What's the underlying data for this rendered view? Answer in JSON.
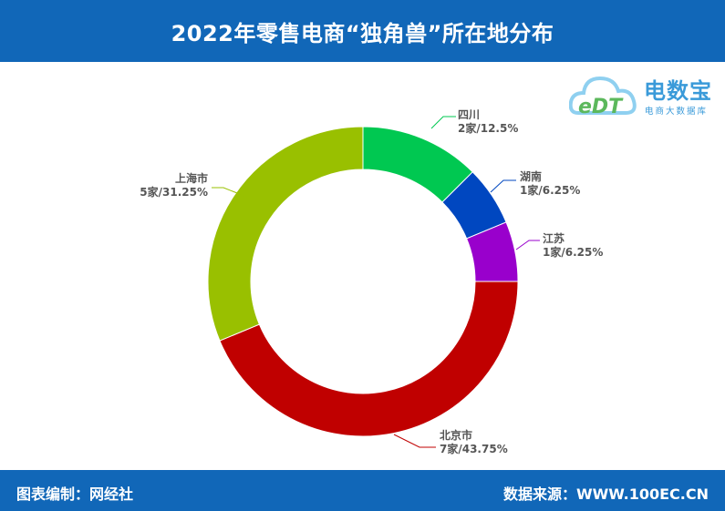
{
  "header": {
    "title": "2022年零售电商“独角兽”所在地分布"
  },
  "logo": {
    "name": "电数宝",
    "sub": "电商大数据库",
    "mark": "eDT",
    "icon": "cloud-icon"
  },
  "footer": {
    "left": "图表编制：网经社",
    "right": "数据来源：WWW.100EC.CN"
  },
  "colors": {
    "header_bg": "#1167b8",
    "sichuan": "#00c851",
    "hunan": "#0047c0",
    "jiangsu": "#9900cc",
    "beijing": "#c00000",
    "shanghai": "#99c000"
  },
  "chart_data": {
    "type": "pie",
    "donut": true,
    "slices": [
      {
        "name": "四川",
        "count": 2,
        "unit": "家",
        "percent": 12.5,
        "text": "2家/12.5%",
        "color": "#00c851"
      },
      {
        "name": "湖南",
        "count": 1,
        "unit": "家",
        "percent": 6.25,
        "text": "1家/6.25%",
        "color": "#0047c0"
      },
      {
        "name": "江苏",
        "count": 1,
        "unit": "家",
        "percent": 6.25,
        "text": "1家/6.25%",
        "color": "#9900cc"
      },
      {
        "name": "北京市",
        "count": 7,
        "unit": "家",
        "percent": 43.75,
        "text": "7家/43.75%",
        "color": "#c00000"
      },
      {
        "name": "上海市",
        "count": 5,
        "unit": "家",
        "percent": 31.25,
        "text": "5家/31.25%",
        "color": "#99c000"
      }
    ]
  }
}
